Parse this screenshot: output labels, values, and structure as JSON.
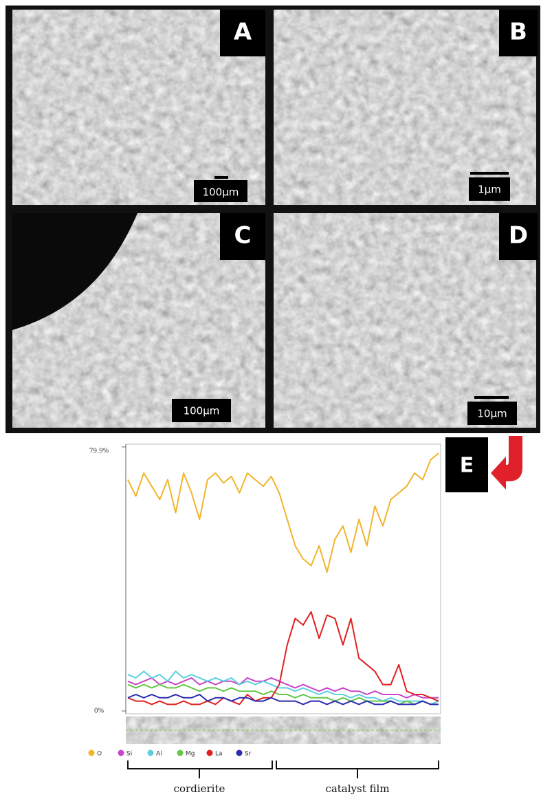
{
  "panels": [
    {
      "label": "A",
      "scale": "100µm"
    },
    {
      "label": "B",
      "scale": "1µm"
    },
    {
      "label": "C",
      "scale": "100µm"
    },
    {
      "label": "D",
      "scale": "10µm"
    }
  ],
  "chart_data": {
    "type": "line",
    "panel_label": "E",
    "categories": [
      null,
      null,
      null,
      null,
      null,
      null,
      null,
      null,
      null,
      null,
      null,
      null,
      null,
      null,
      null,
      null,
      null,
      null,
      null,
      null,
      null,
      null,
      null,
      null,
      null,
      null,
      null,
      null,
      null,
      null,
      null,
      null,
      null,
      null,
      null,
      null,
      null,
      null,
      null,
      null
    ],
    "ylim": [
      0,
      79.9
    ],
    "yticks": [
      {
        "value": 79.9,
        "label": "79.9%"
      },
      {
        "value": 0,
        "label": "0%"
      }
    ],
    "series": [
      {
        "name": "O",
        "color": "#f2b429",
        "values": [
          70,
          65,
          72,
          68,
          64,
          70,
          60,
          72,
          66,
          58,
          70,
          72,
          69,
          71,
          66,
          72,
          70,
          68,
          71,
          66,
          58,
          50,
          46,
          44,
          50,
          42,
          52,
          56,
          48,
          58,
          50,
          62,
          56,
          64,
          66,
          68,
          72,
          70,
          76,
          78
        ]
      },
      {
        "name": "Si",
        "color": "#c844c8",
        "values": [
          9,
          8,
          9,
          10,
          8,
          9,
          8,
          9,
          10,
          8,
          9,
          8,
          9,
          9,
          8,
          10,
          9,
          9,
          10,
          9,
          8,
          7,
          8,
          7,
          6,
          7,
          6,
          7,
          6,
          6,
          5,
          6,
          5,
          5,
          5,
          4,
          5,
          4,
          4,
          4
        ]
      },
      {
        "name": "Al",
        "color": "#5ccfe0",
        "values": [
          11,
          10,
          12,
          10,
          11,
          9,
          12,
          10,
          11,
          10,
          9,
          10,
          9,
          10,
          8,
          9,
          8,
          9,
          8,
          7,
          7,
          6,
          7,
          6,
          5,
          6,
          5,
          5,
          4,
          5,
          4,
          4,
          3,
          4,
          3,
          3,
          3,
          3,
          2,
          3
        ]
      },
      {
        "name": "Mg",
        "color": "#62c844",
        "values": [
          8,
          7,
          8,
          7,
          8,
          7,
          7,
          8,
          7,
          6,
          7,
          7,
          6,
          7,
          6,
          6,
          6,
          5,
          6,
          5,
          5,
          4,
          5,
          4,
          4,
          4,
          3,
          4,
          3,
          4,
          3,
          3,
          3,
          3,
          2,
          3,
          2,
          3,
          2,
          2
        ]
      },
      {
        "name": "La",
        "color": "#e02020",
        "values": [
          4,
          3,
          3,
          2,
          3,
          2,
          2,
          3,
          2,
          2,
          3,
          2,
          4,
          3,
          2,
          5,
          3,
          4,
          4,
          8,
          20,
          28,
          26,
          30,
          22,
          29,
          28,
          20,
          28,
          16,
          14,
          12,
          8,
          8,
          14,
          6,
          5,
          5,
          4,
          3
        ]
      },
      {
        "name": "Sr",
        "color": "#2a2ab0",
        "values": [
          4,
          5,
          4,
          5,
          4,
          4,
          5,
          4,
          4,
          5,
          3,
          4,
          4,
          3,
          4,
          4,
          3,
          3,
          4,
          3,
          3,
          3,
          2,
          3,
          3,
          2,
          3,
          2,
          3,
          2,
          3,
          2,
          2,
          3,
          2,
          2,
          2,
          3,
          2,
          2
        ]
      }
    ],
    "annotations": [
      "cordierite",
      "catalyst film"
    ]
  }
}
